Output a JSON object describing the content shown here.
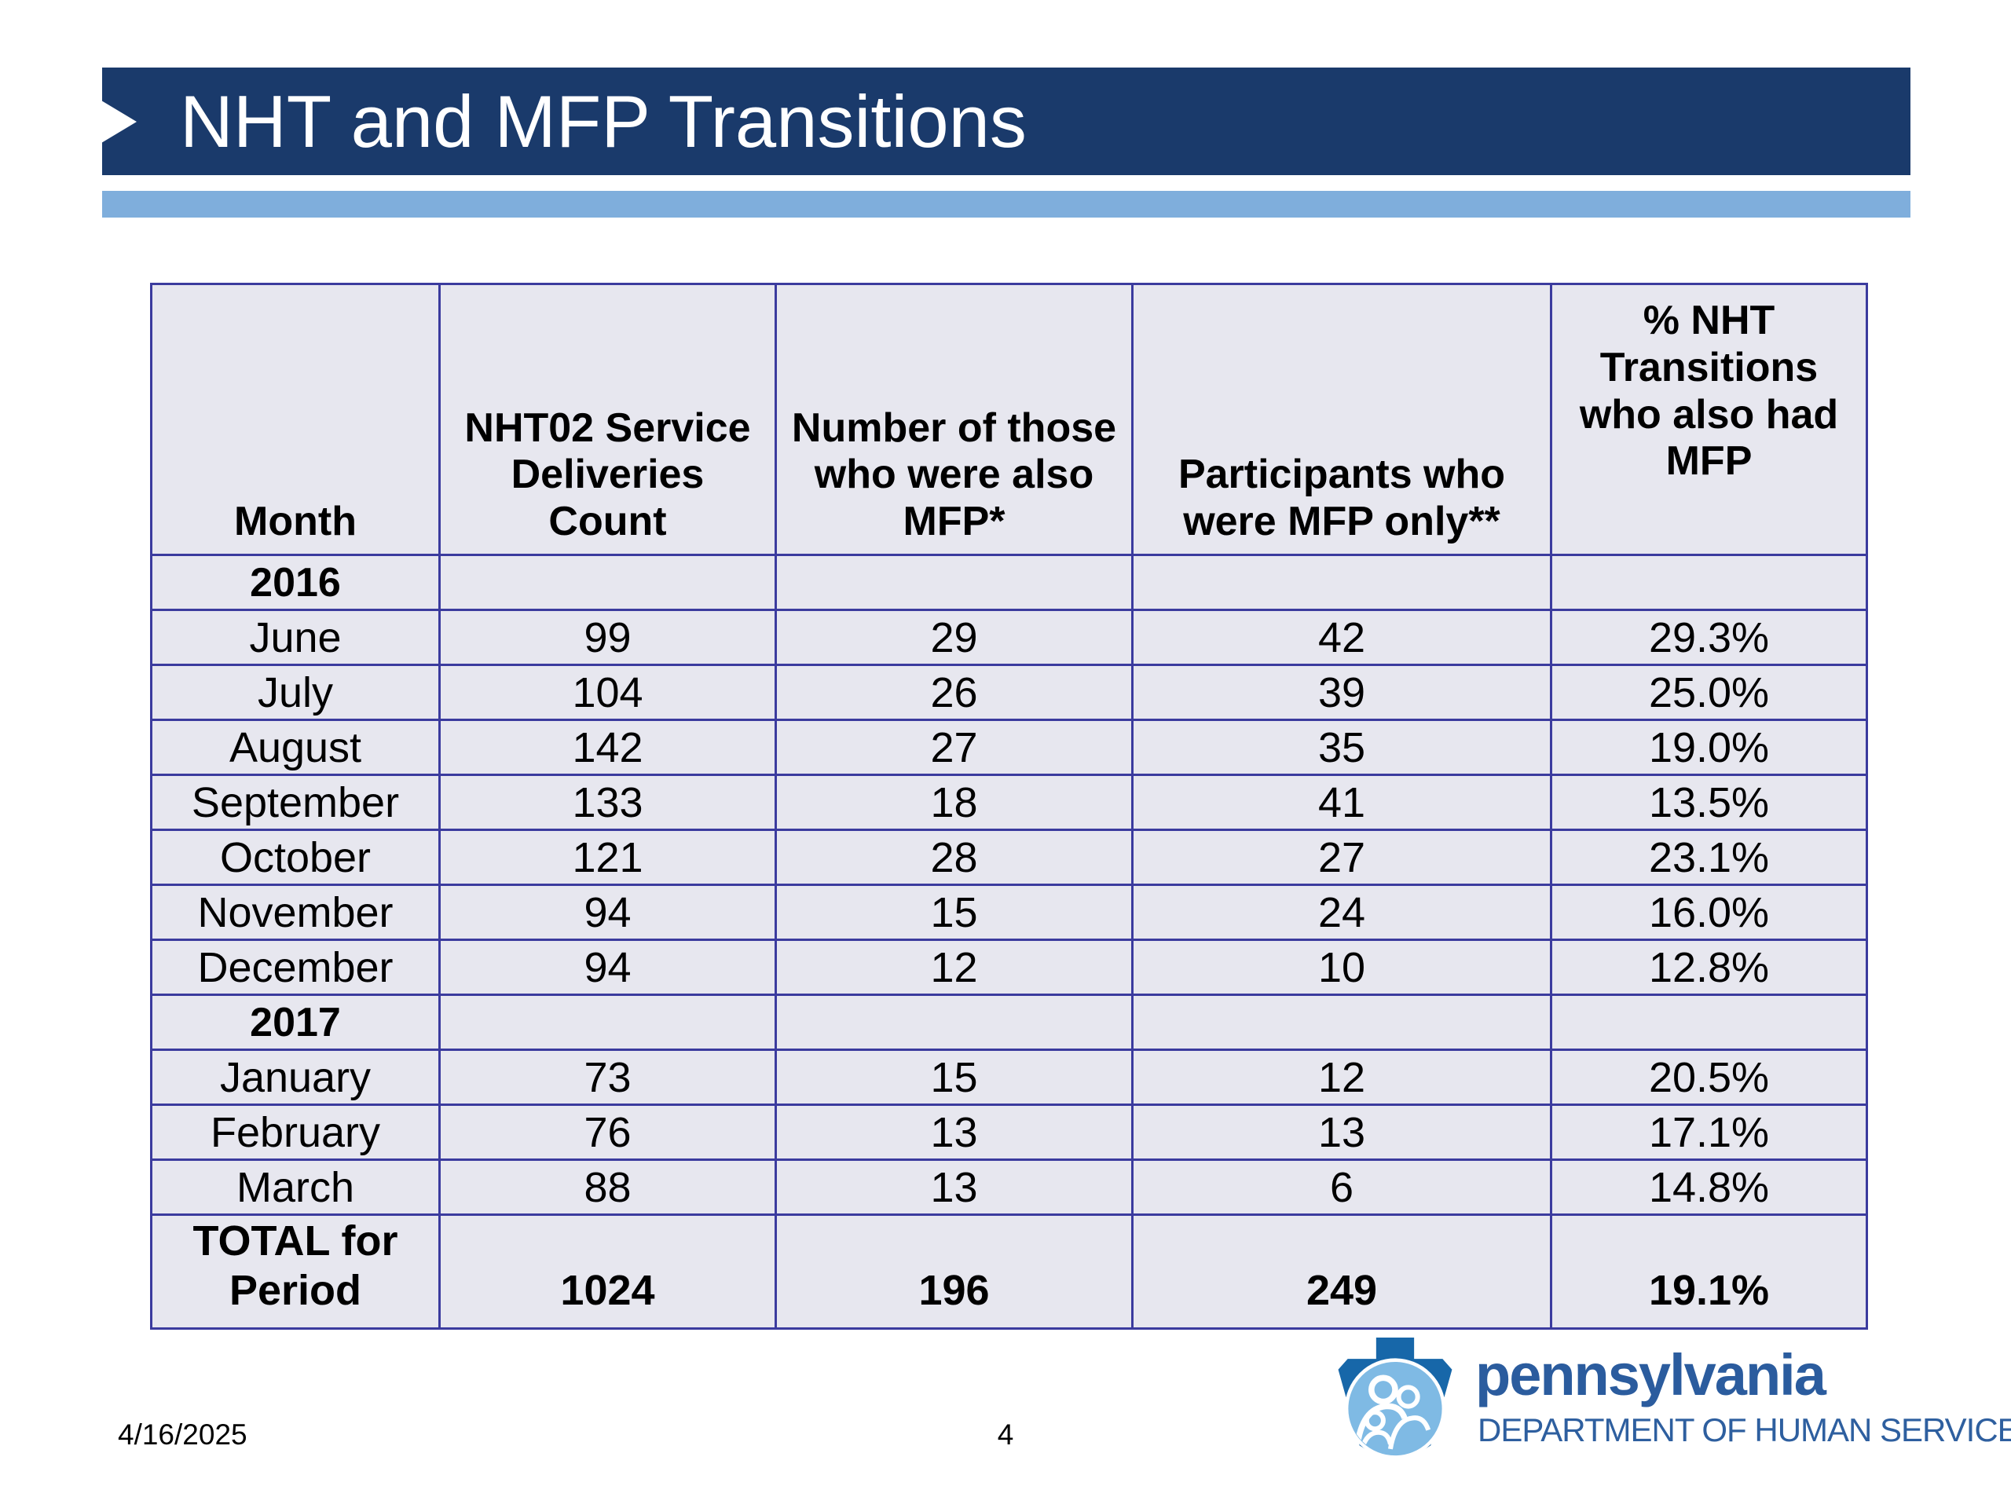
{
  "slide": {
    "title": "NHT and MFP Transitions",
    "footer": {
      "date": "4/16/2025",
      "page_number": "4"
    },
    "logo": {
      "brand": "pennsylvania",
      "department": "DEPARTMENT OF HUMAN SERVICES"
    },
    "colors": {
      "title_bar": "#1A3A6B",
      "accent_stripe": "#7FAEDC",
      "table_border": "#3B3B9E",
      "table_cell_bg": "#E7E7EF",
      "logo_keystone": "#1767A9",
      "logo_circle": "#7FBAE4",
      "logo_text": "#2B5C9E"
    }
  },
  "table": {
    "columns": [
      "Month",
      "NHT02 Service Deliveries Count",
      "Number of those who were also MFP*",
      "Participants who were MFP only**",
      "% NHT Transitions who also had MFP"
    ],
    "rows": [
      {
        "type": "section",
        "label": "2016",
        "cells": [
          "",
          "",
          "",
          ""
        ]
      },
      {
        "type": "data",
        "label": "June",
        "cells": [
          "99",
          "29",
          "42",
          "29.3%"
        ]
      },
      {
        "type": "data",
        "label": "July",
        "cells": [
          "104",
          "26",
          "39",
          "25.0%"
        ]
      },
      {
        "type": "data",
        "label": "August",
        "cells": [
          "142",
          "27",
          "35",
          "19.0%"
        ]
      },
      {
        "type": "data",
        "label": "September",
        "cells": [
          "133",
          "18",
          "41",
          "13.5%"
        ]
      },
      {
        "type": "data",
        "label": "October",
        "cells": [
          "121",
          "28",
          "27",
          "23.1%"
        ]
      },
      {
        "type": "data",
        "label": "November",
        "cells": [
          "94",
          "15",
          "24",
          "16.0%"
        ]
      },
      {
        "type": "data",
        "label": "December",
        "cells": [
          "94",
          "12",
          "10",
          "12.8%"
        ]
      },
      {
        "type": "section",
        "label": "2017",
        "cells": [
          "",
          "",
          "",
          ""
        ]
      },
      {
        "type": "data",
        "label": "January",
        "cells": [
          "73",
          "15",
          "12",
          "20.5%"
        ]
      },
      {
        "type": "data",
        "label": "February",
        "cells": [
          "76",
          "13",
          "13",
          "17.1%"
        ]
      },
      {
        "type": "data",
        "label": "March",
        "cells": [
          "88",
          "13",
          "6",
          "14.8%"
        ]
      },
      {
        "type": "total",
        "label": "TOTAL for Period",
        "cells": [
          "1024",
          "196",
          "249",
          "19.1%"
        ]
      }
    ]
  },
  "chart_data": {
    "type": "table",
    "title": "NHT and MFP Transitions",
    "categories": [
      "2016 June",
      "2016 July",
      "2016 August",
      "2016 September",
      "2016 October",
      "2016 November",
      "2016 December",
      "2017 January",
      "2017 February",
      "2017 March",
      "TOTAL for Period"
    ],
    "series": [
      {
        "name": "NHT02 Service Deliveries Count",
        "values": [
          99,
          104,
          142,
          133,
          121,
          94,
          94,
          73,
          76,
          88,
          1024
        ]
      },
      {
        "name": "Number of those who were also MFP*",
        "values": [
          29,
          26,
          27,
          18,
          28,
          15,
          12,
          15,
          13,
          13,
          196
        ]
      },
      {
        "name": "Participants who were MFP only**",
        "values": [
          42,
          39,
          35,
          41,
          27,
          24,
          10,
          12,
          13,
          6,
          249
        ]
      },
      {
        "name": "% NHT Transitions who also had MFP",
        "values": [
          "29.3%",
          "25.0%",
          "19.0%",
          "13.5%",
          "23.1%",
          "16.0%",
          "12.8%",
          "20.5%",
          "17.1%",
          "14.8%",
          "19.1%"
        ]
      }
    ]
  }
}
